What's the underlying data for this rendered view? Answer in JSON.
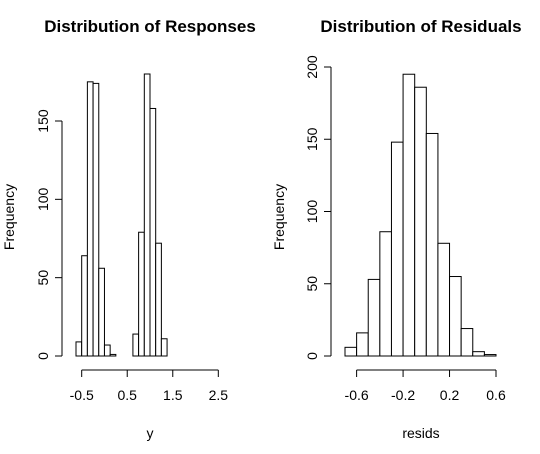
{
  "chart_data": [
    {
      "type": "bar",
      "title": "Distribution of Responses",
      "xlabel": "y",
      "ylabel": "Frequency",
      "bin_width": 0.125,
      "bin_start": -0.625,
      "values": [
        9,
        64,
        175,
        174,
        56,
        7,
        1,
        0,
        0,
        0,
        14,
        79,
        180,
        158,
        72,
        11
      ],
      "xlim": [
        -0.625,
        2.625
      ],
      "ylim": [
        0,
        180
      ],
      "xticks": [
        -0.5,
        0.5,
        1.5,
        2.5
      ],
      "xtick_labels": [
        "-0.5",
        "0.5",
        "1.5",
        "2.5"
      ],
      "yticks": [
        0,
        50,
        100,
        150
      ],
      "ytick_labels": [
        "0",
        "50",
        "100",
        "150"
      ],
      "grid": false
    },
    {
      "type": "bar",
      "title": "Distribution of Residuals",
      "xlabel": "resids",
      "ylabel": "Frequency",
      "bin_width": 0.1,
      "bin_start": -0.7,
      "values": [
        6,
        16,
        53,
        86,
        148,
        195,
        186,
        154,
        78,
        55,
        19,
        3,
        1
      ],
      "xlim": [
        -0.7,
        0.6
      ],
      "ylim": [
        0,
        200
      ],
      "xticks": [
        -0.6,
        -0.2,
        0.2,
        0.6
      ],
      "xtick_labels": [
        "-0.6",
        "-0.2",
        "0.2",
        "0.6"
      ],
      "yticks": [
        0,
        50,
        100,
        150,
        200
      ],
      "ytick_labels": [
        "0",
        "50",
        "100",
        "150",
        "200"
      ],
      "grid": false
    }
  ]
}
